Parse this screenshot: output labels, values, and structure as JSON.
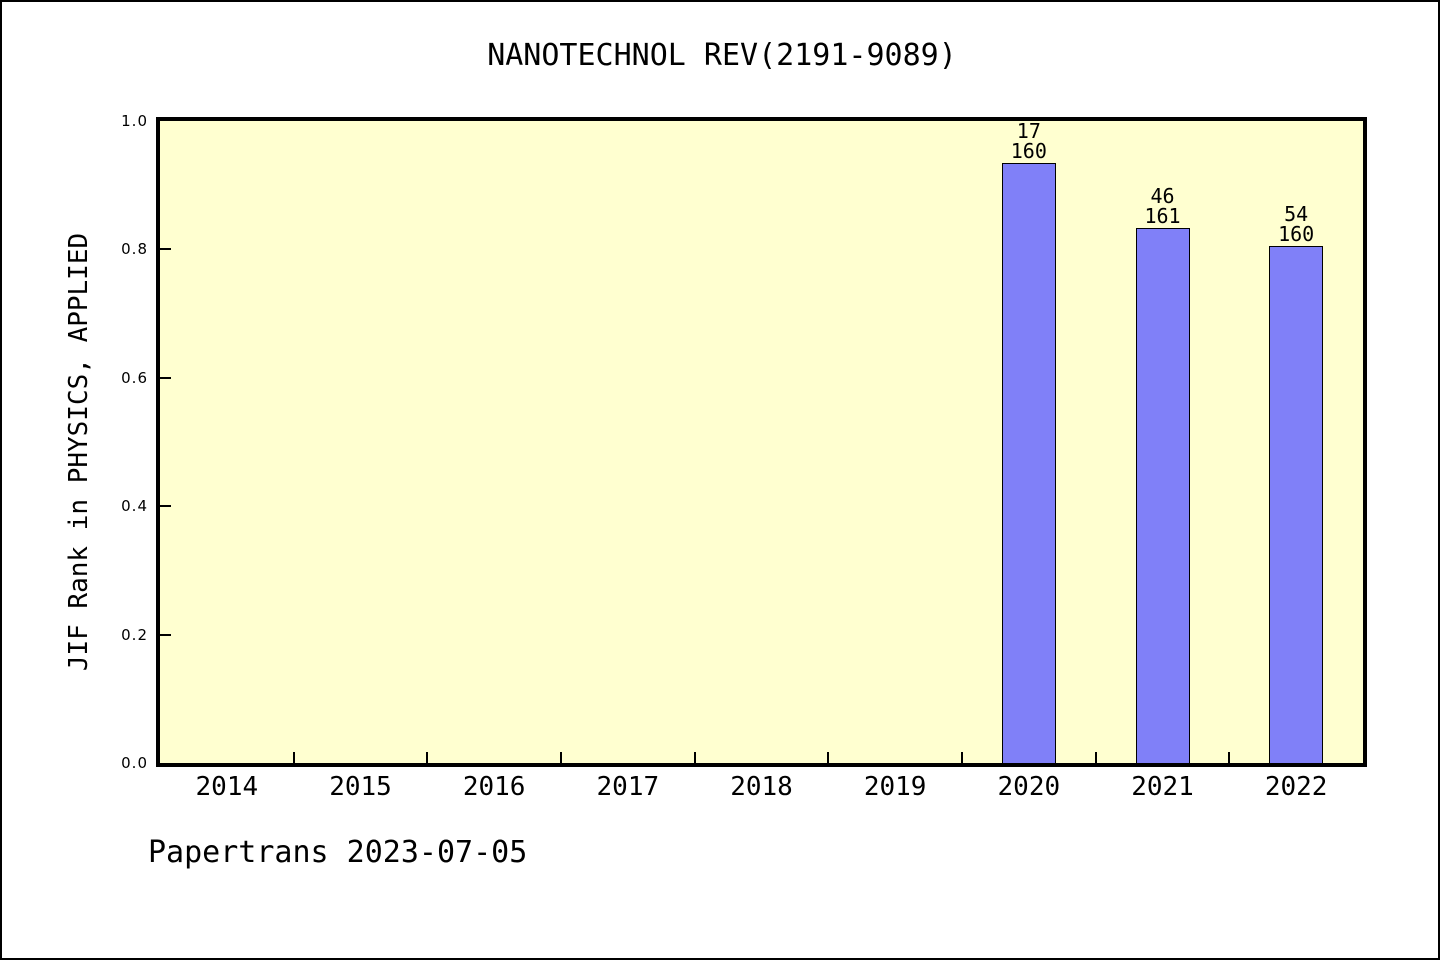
{
  "footer": "Papertrans 2023-07-05",
  "chart_data": {
    "type": "bar",
    "title": "NANOTECHNOL REV(2191-9089)",
    "ylabel": "JIF Rank in PHYSICS, APPLIED",
    "xlabel": "",
    "categories": [
      "2014",
      "2015",
      "2016",
      "2017",
      "2018",
      "2019",
      "2020",
      "2021",
      "2022"
    ],
    "values": [
      null,
      null,
      null,
      null,
      null,
      null,
      0.935,
      0.833,
      0.805
    ],
    "bar_labels": [
      null,
      null,
      null,
      null,
      null,
      null,
      [
        "17",
        "160"
      ],
      [
        "46",
        "161"
      ],
      [
        "54",
        "160"
      ]
    ],
    "ylim": [
      0,
      1
    ],
    "yticks": [
      0,
      0.2,
      0.4,
      0.6,
      0.8,
      1
    ],
    "ytick_labels": [
      "0.0",
      "0.2",
      "0.4",
      "0.6",
      "0.8",
      "1.0"
    ],
    "grid": false,
    "legend": null,
    "ticks_between_categories": true,
    "colors": {
      "bar_fill": "#8080f8",
      "bar_border": "#000000",
      "plot_bg": "#ffffd0",
      "page_bg": "#ffffff",
      "text": "#000000"
    }
  }
}
